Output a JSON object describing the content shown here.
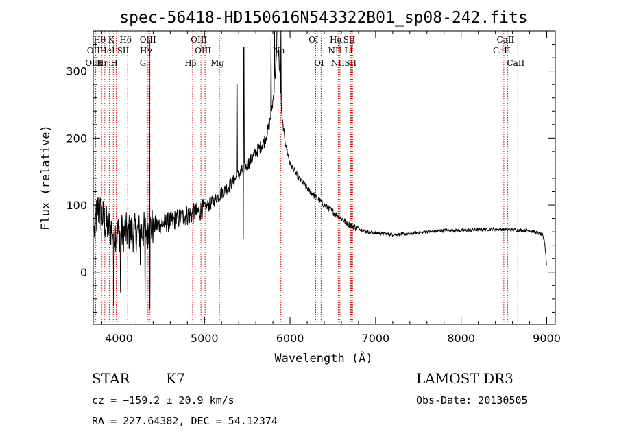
{
  "chart_data": {
    "type": "line",
    "title": "spec-56418-HD150616N543322B01_sp08-242.fits",
    "xlabel": "Wavelength (Å)",
    "ylabel": "Flux (relative)",
    "xlim": [
      3700,
      9100
    ],
    "ylim": [
      -78,
      360
    ],
    "xticks": [
      4000,
      5000,
      6000,
      7000,
      8000,
      9000
    ],
    "xtick_labels": [
      "4000",
      "5000",
      "6000",
      "7000",
      "8000",
      "9000"
    ],
    "yticks": [
      0,
      100,
      200,
      300
    ],
    "ytick_labels": [
      "0",
      "100",
      "200",
      "300"
    ],
    "series": [
      {
        "name": "spectrum",
        "anchors": [
          [
            3710,
            60
          ],
          [
            3750,
            95
          ],
          [
            3800,
            85
          ],
          [
            3850,
            70
          ],
          [
            3900,
            65
          ],
          [
            3950,
            60
          ],
          [
            4000,
            58
          ],
          [
            4100,
            60
          ],
          [
            4200,
            58
          ],
          [
            4300,
            62
          ],
          [
            4400,
            68
          ],
          [
            4500,
            72
          ],
          [
            4600,
            75
          ],
          [
            4700,
            80
          ],
          [
            4800,
            85
          ],
          [
            4900,
            88
          ],
          [
            5000,
            95
          ],
          [
            5100,
            105
          ],
          [
            5200,
            118
          ],
          [
            5300,
            130
          ],
          [
            5400,
            145
          ],
          [
            5500,
            160
          ],
          [
            5600,
            178
          ],
          [
            5700,
            195
          ],
          [
            5750,
            215
          ],
          [
            5800,
            255
          ],
          [
            5830,
            300
          ],
          [
            5850,
            335
          ],
          [
            5870,
            325
          ],
          [
            5900,
            235
          ],
          [
            5950,
            190
          ],
          [
            6000,
            162
          ],
          [
            6100,
            140
          ],
          [
            6200,
            125
          ],
          [
            6300,
            112
          ],
          [
            6400,
            100
          ],
          [
            6500,
            90
          ],
          [
            6600,
            80
          ],
          [
            6700,
            70
          ],
          [
            6800,
            65
          ],
          [
            6900,
            60
          ],
          [
            7000,
            58
          ],
          [
            7200,
            56
          ],
          [
            7400,
            57
          ],
          [
            7600,
            60
          ],
          [
            7800,
            62
          ],
          [
            8000,
            62
          ],
          [
            8200,
            63
          ],
          [
            8400,
            64
          ],
          [
            8600,
            63
          ],
          [
            8800,
            62
          ],
          [
            8900,
            58
          ],
          [
            8950,
            55
          ],
          [
            8975,
            45
          ],
          [
            8990,
            25
          ],
          [
            9000,
            5
          ]
        ]
      }
    ],
    "spectral_lines": [
      {
        "label": "Hθ",
        "wavelength": 3798,
        "row": 1
      },
      {
        "label": "K",
        "wavelength": 3934,
        "row": 1
      },
      {
        "label": "Hδ",
        "wavelength": 4102,
        "row": 1
      },
      {
        "label": "OIII",
        "wavelength": 4363,
        "row": 1
      },
      {
        "label": "OIII",
        "wavelength": 4959,
        "row": 1
      },
      {
        "label": "OI",
        "wavelength": 6300,
        "row": 1
      },
      {
        "label": "Hα",
        "wavelength": 6563,
        "row": 1
      },
      {
        "label": "SII",
        "wavelength": 6716,
        "row": 1
      },
      {
        "label": "CaII",
        "wavelength": 8542,
        "row": 1
      },
      {
        "label": "OII",
        "wavelength": 3727,
        "row": 2
      },
      {
        "label": "HeI",
        "wavelength": 3889,
        "row": 2
      },
      {
        "label": "SII",
        "wavelength": 4072,
        "row": 2
      },
      {
        "label": "Hγ",
        "wavelength": 4340,
        "row": 2
      },
      {
        "label": "OIII",
        "wavelength": 5007,
        "row": 2
      },
      {
        "label": "NII",
        "wavelength": 6548,
        "row": 2
      },
      {
        "label": "Li",
        "wavelength": 6708,
        "row": 2
      },
      {
        "label": "CaII",
        "wavelength": 8498,
        "row": 2
      },
      {
        "label": "OIII",
        "wavelength": 3727,
        "row": 3
      },
      {
        "label": "Hη",
        "wavelength": 3835,
        "row": 3
      },
      {
        "label": "H",
        "wavelength": 3968,
        "row": 3
      },
      {
        "label": "G",
        "wavelength": 4305,
        "row": 3
      },
      {
        "label": "Hβ",
        "wavelength": 4861,
        "row": 3
      },
      {
        "label": "Mg",
        "wavelength": 5175,
        "row": 3
      },
      {
        "label": "Na",
        "wavelength": 5893,
        "row": 2
      },
      {
        "label": "OI",
        "wavelength": 6363,
        "row": 3
      },
      {
        "label": "NII",
        "wavelength": 6583,
        "row": 3
      },
      {
        "label": "SII",
        "wavelength": 6731,
        "row": 3
      },
      {
        "label": "CaII",
        "wavelength": 8662,
        "row": 3
      }
    ]
  },
  "info": {
    "object_class": "STAR",
    "subclass": "K7",
    "survey": "LAMOST DR3",
    "velocity": "cz = −159.2 ± 20.9 km/s",
    "obs_date": "Obs-Date: 20130505",
    "coords": "RA = 227.64382, DEC =  54.12374"
  }
}
